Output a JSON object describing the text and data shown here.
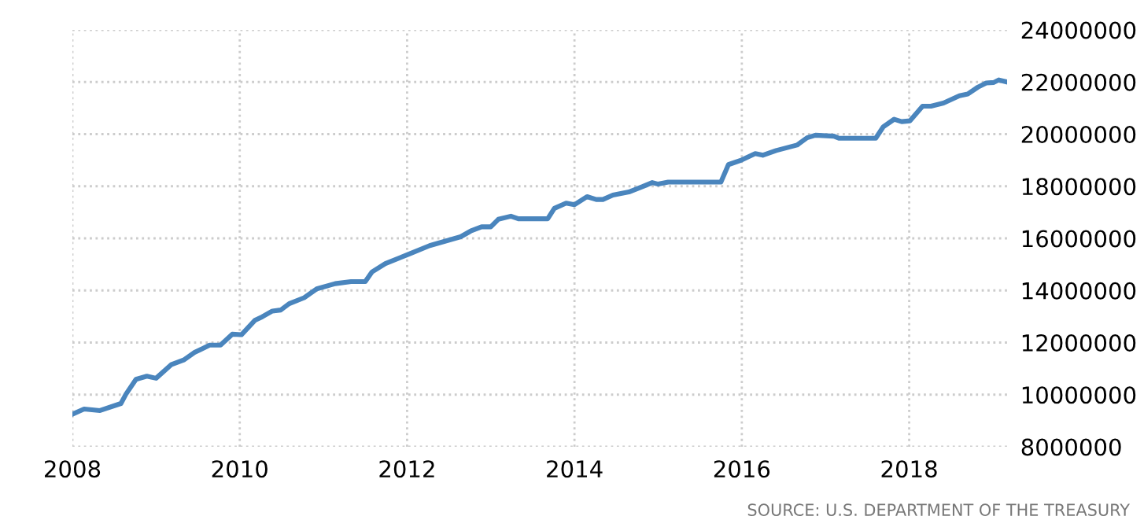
{
  "chart_data": {
    "type": "line",
    "x": [
      2008.0,
      2008.14,
      2008.33,
      2008.58,
      2008.64,
      2008.76,
      2008.89,
      2009.0,
      2009.18,
      2009.33,
      2009.46,
      2009.64,
      2009.77,
      2009.91,
      2010.02,
      2010.18,
      2010.27,
      2010.39,
      2010.49,
      2010.59,
      2010.77,
      2010.92,
      2011.14,
      2011.33,
      2011.5,
      2011.58,
      2011.74,
      2012.02,
      2012.27,
      2012.64,
      2012.76,
      2012.89,
      2013.0,
      2013.09,
      2013.24,
      2013.33,
      2013.68,
      2013.76,
      2013.9,
      2014.0,
      2014.15,
      2014.26,
      2014.34,
      2014.46,
      2014.65,
      2014.81,
      2014.93,
      2015.0,
      2015.12,
      2015.75,
      2015.84,
      2016.0,
      2016.16,
      2016.25,
      2016.41,
      2016.66,
      2016.78,
      2016.88,
      2017.1,
      2017.16,
      2017.6,
      2017.69,
      2017.82,
      2017.91,
      2018.01,
      2018.16,
      2018.26,
      2018.41,
      2018.6,
      2018.7,
      2018.82,
      2018.92,
      2019.01,
      2019.07,
      2019.17
    ],
    "series": [
      {
        "color": "#4a85bd",
        "values": [
          9250000,
          9450000,
          9390000,
          9660000,
          10020000,
          10590000,
          10710000,
          10630000,
          11150000,
          11330000,
          11620000,
          11900000,
          11900000,
          12320000,
          12300000,
          12850000,
          12990000,
          13210000,
          13250000,
          13490000,
          13720000,
          14060000,
          14260000,
          14340000,
          14340000,
          14710000,
          15030000,
          15390000,
          15720000,
          16060000,
          16280000,
          16440000,
          16440000,
          16730000,
          16850000,
          16750000,
          16750000,
          17150000,
          17350000,
          17290000,
          17600000,
          17490000,
          17490000,
          17660000,
          17780000,
          17980000,
          18140000,
          18080000,
          18160000,
          18160000,
          18830000,
          19010000,
          19250000,
          19190000,
          19370000,
          19580000,
          19860000,
          19960000,
          19920000,
          19840000,
          19840000,
          20280000,
          20570000,
          20480000,
          20510000,
          21070000,
          21070000,
          21190000,
          21470000,
          21540000,
          21800000,
          21960000,
          21980000,
          22080000,
          22000000
        ]
      }
    ],
    "xlim": [
      2008,
      2019.17
    ],
    "xticks": [
      2008,
      2010,
      2012,
      2014,
      2016,
      2018
    ],
    "ylim": [
      8000000,
      24000000
    ],
    "yticks": [
      8000000,
      10000000,
      12000000,
      14000000,
      16000000,
      18000000,
      20000000,
      22000000,
      24000000
    ],
    "grid": true,
    "line_style": "solid",
    "marker": "none",
    "annotations": [
      "SOURCE: U.S. DEPARTMENT OF THE TREASURY"
    ]
  }
}
